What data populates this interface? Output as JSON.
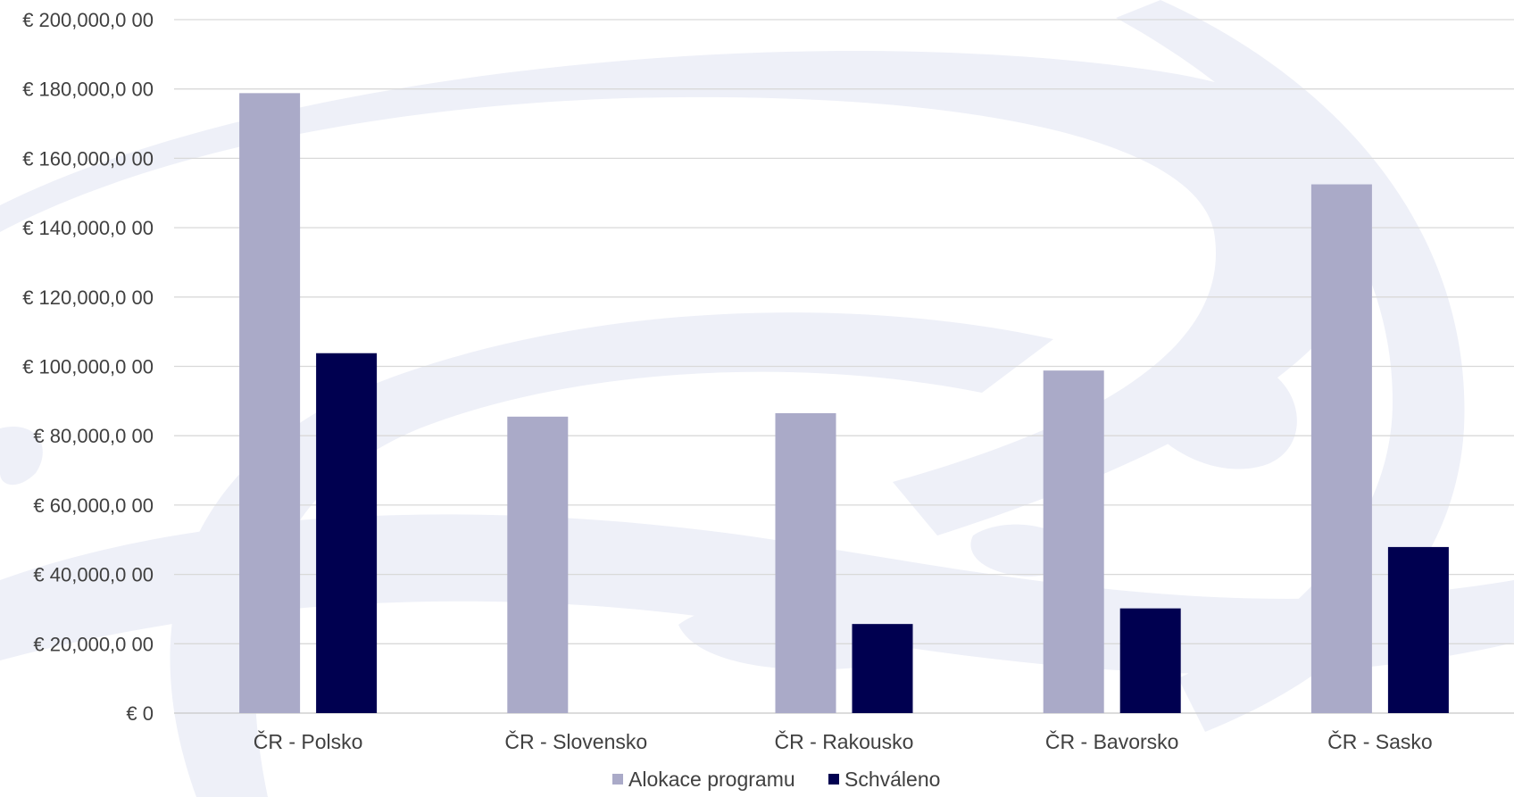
{
  "chart_data": {
    "type": "bar",
    "categories": [
      "ČR - Polsko",
      "ČR - Slovensko",
      "ČR - Rakousko",
      "ČR - Bavorsko",
      "ČR - Sasko"
    ],
    "series": [
      {
        "name": "Alokace programu",
        "values": [
          178800,
          85500,
          86500,
          98800,
          152500
        ],
        "color": "#aaaac8"
      },
      {
        "name": "Schváleno",
        "values": [
          103800,
          0,
          25700,
          30200,
          47900
        ],
        "color": "#000050"
      }
    ],
    "ylim": [
      0,
      200000
    ],
    "yticks": [
      0,
      20000,
      40000,
      60000,
      80000,
      100000,
      120000,
      140000,
      160000,
      180000,
      200000
    ],
    "ytick_labels": [
      "€  0",
      "€ 20,000,0 00",
      "€ 40,000,0 00",
      "€ 60,000,0 00",
      "€ 80,000,0 00",
      "€ 100,000,0 00",
      "€ 120,000,0 00",
      "€ 140,000,0 00",
      "€ 160,000,0 00",
      "€ 180,000,0 00",
      "€ 200,000,0 00"
    ],
    "grid": true,
    "legend_position": "bottom-center",
    "watermark_color": "#eef0f8"
  }
}
